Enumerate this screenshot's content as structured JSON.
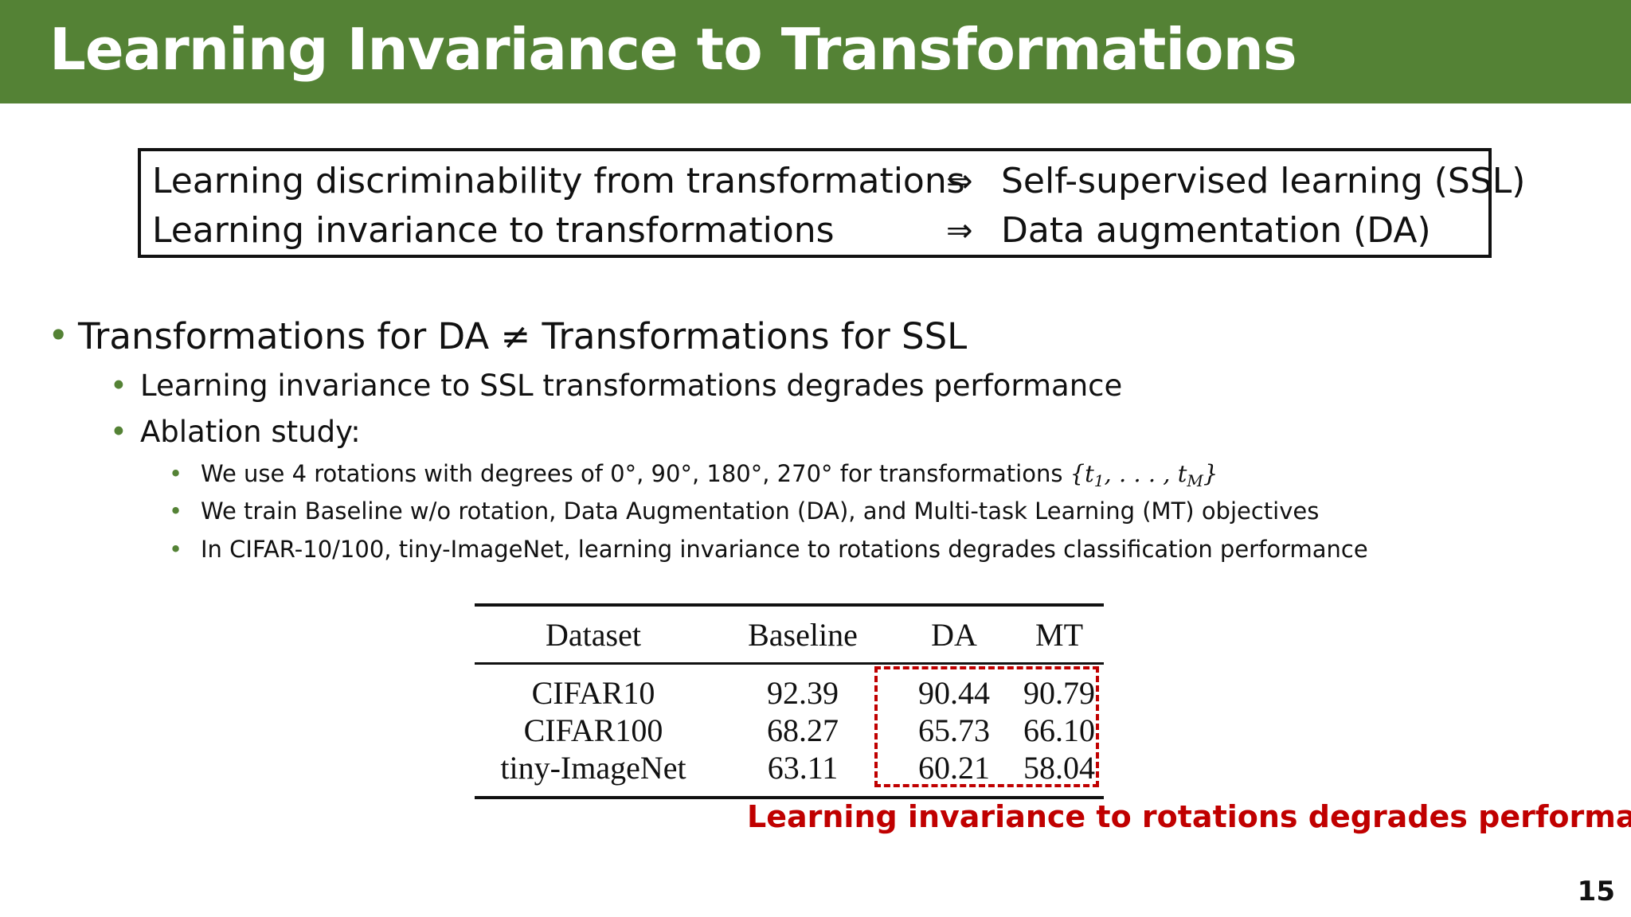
{
  "slide": {
    "title": "Learning Invariance to Transformations",
    "page_number": "15"
  },
  "definitions": [
    {
      "lhs": "Learning discriminability from transformations",
      "arrow": "⇒",
      "rhs": "Self-supervised learning (SSL)"
    },
    {
      "lhs": "Learning invariance to transformations",
      "arrow": "⇒",
      "rhs": "Data augmentation (DA)"
    }
  ],
  "bullets": {
    "main": "Transformations for DA ≠ Transformations for SSL",
    "sub1": "Learning invariance to SSL transformations degrades performance",
    "sub2": "Ablation study:",
    "sub2_items": {
      "a_text": "We use 4 rotations with degrees of 0°, 90°, 180°, 270° for transformations",
      "a_math_open": "{t",
      "a_math_sub1": "1",
      "a_math_mid": ", . . . , t",
      "a_math_subM": "M",
      "a_math_close": "}",
      "b": "We train Baseline w/o rotation, Data Augmentation (DA), and Multi-task Learning (MT) objectives",
      "c": "In CIFAR-10/100, tiny-ImageNet, learning invariance to rotations degrades classification performance"
    }
  },
  "table": {
    "headers": [
      "Dataset",
      "Baseline",
      "DA",
      "MT"
    ],
    "rows": [
      [
        "CIFAR10",
        "92.39",
        "90.44",
        "90.79"
      ],
      [
        "CIFAR100",
        "68.27",
        "65.73",
        "66.10"
      ],
      [
        "tiny-ImageNet",
        "63.11",
        "60.21",
        "58.04"
      ]
    ]
  },
  "note": "Learning invariance to rotations degrades performance!",
  "colors": {
    "title_bar": "#548235",
    "bullet": "#548235",
    "highlight": "#c00000",
    "note": "#c00000"
  }
}
